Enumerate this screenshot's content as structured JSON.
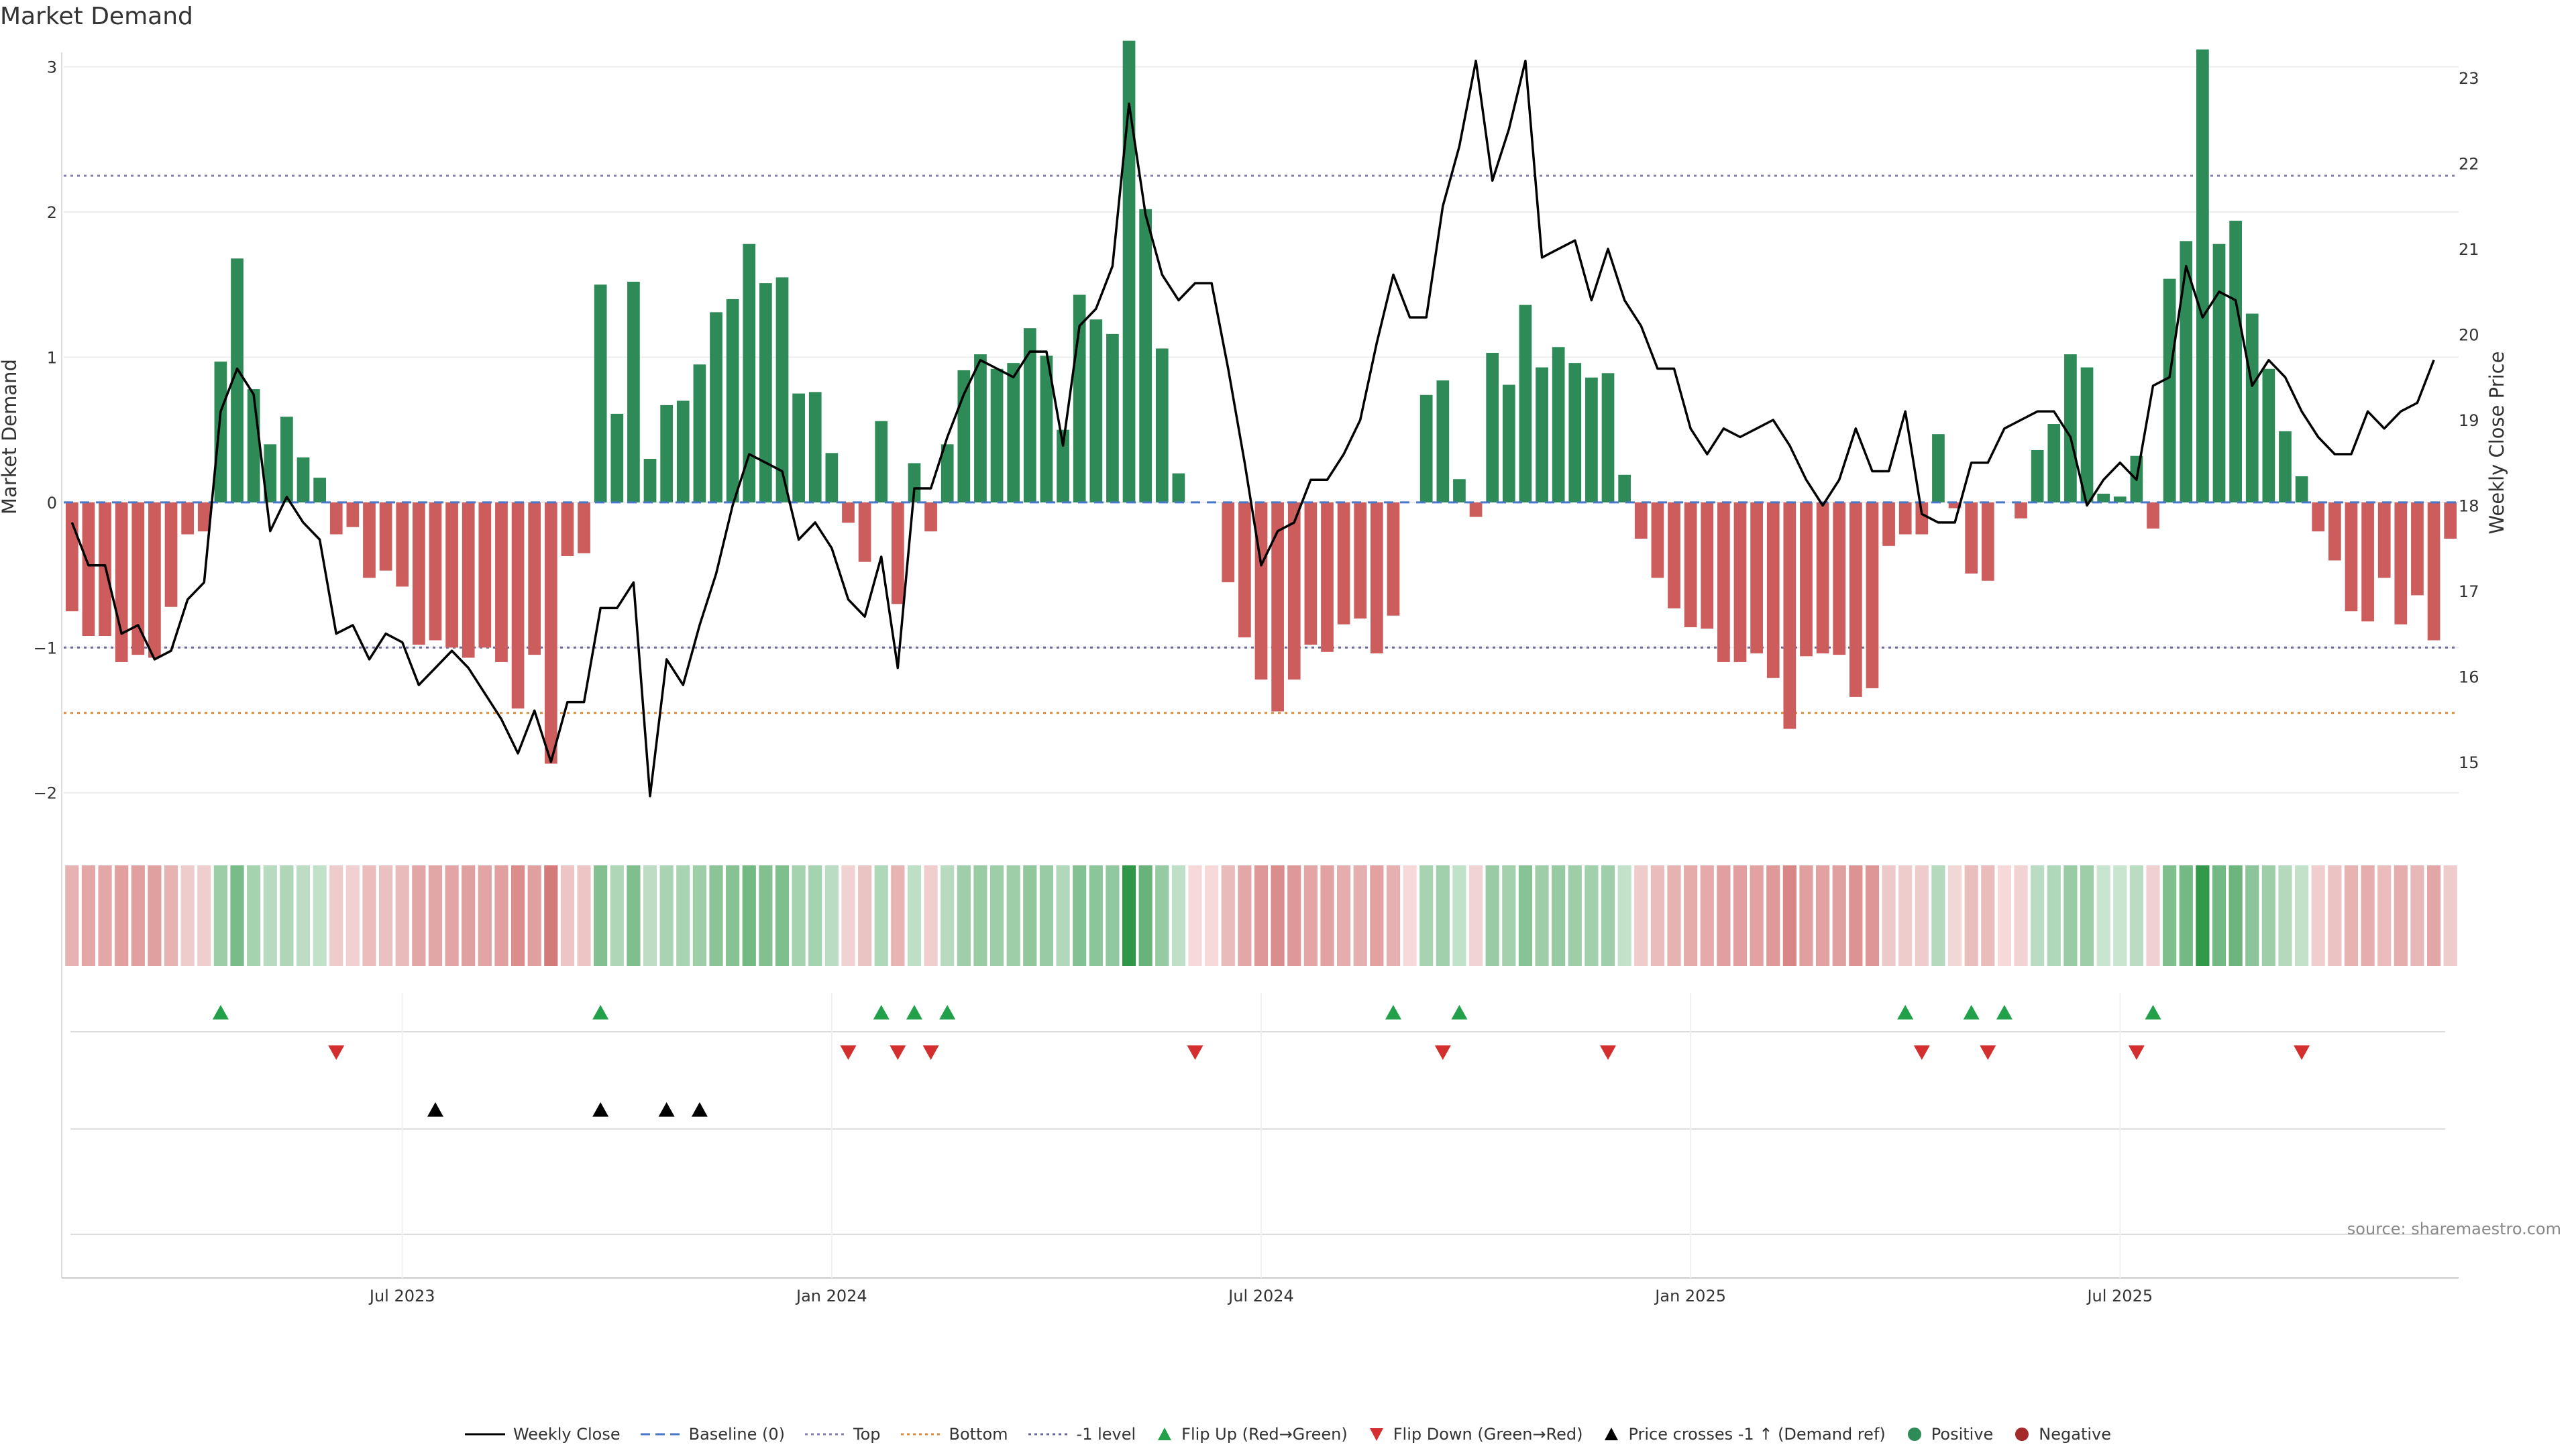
{
  "title": "Market Demand",
  "source": "source: sharemaestro.com",
  "colors": {
    "positive": "#2e8b57",
    "negative": "#cd5c5c",
    "price_line": "#000000",
    "top": "#8a7fb0",
    "bottom": "#e08a3c",
    "minus_one": "#6a6a9a",
    "flip_up": "#22a04a",
    "flip_down": "#d32f2f",
    "cross_marker": "#000000"
  },
  "legend": [
    {
      "label": "Weekly Close",
      "kind": "line",
      "color": "#000000"
    },
    {
      "label": "Baseline (0)",
      "kind": "dash",
      "color": "#4a78c8"
    },
    {
      "label": "Top",
      "kind": "dot",
      "color": "#8a7fb0"
    },
    {
      "label": "Bottom",
      "kind": "dot",
      "color": "#e08a3c"
    },
    {
      "label": "-1 level",
      "kind": "dot",
      "color": "#6a6a9a"
    },
    {
      "label": "Flip Up (Red→Green)",
      "kind": "tri-up",
      "color": "#22a04a"
    },
    {
      "label": "Flip Down (Green→Red)",
      "kind": "tri-down",
      "color": "#d32f2f"
    },
    {
      "label": "Price crosses -1 ↑ (Demand ref)",
      "kind": "tri-up",
      "color": "#000000"
    },
    {
      "label": "Positive",
      "kind": "circle",
      "color": "#2e8b57"
    },
    {
      "label": "Negative",
      "kind": "circle",
      "color": "#a52a2a"
    }
  ],
  "chart_data": {
    "type": "bar+line",
    "title": "Market Demand",
    "ylabel": "Market Demand",
    "y2label": "Weekly Close Price",
    "ylim": [
      -2.2,
      3.1
    ],
    "y2lim": [
      14.3,
      23.3
    ],
    "yticks": [
      -2,
      -1,
      0,
      1,
      2,
      3
    ],
    "yticklabels": [
      "−2",
      "−1",
      "0",
      "1",
      "2",
      "3"
    ],
    "y2ticks": [
      15,
      16,
      17,
      18,
      19,
      20,
      21,
      22,
      23
    ],
    "xticklabels": [
      {
        "label": "Jul 2023",
        "week": 20
      },
      {
        "label": "Jan 2024",
        "week": 46
      },
      {
        "label": "Jul 2024",
        "week": 72
      },
      {
        "label": "Jan 2025",
        "week": 98
      },
      {
        "label": "Jul 2025",
        "week": 124
      }
    ],
    "levels": {
      "top": 2.25,
      "bottom": -1.45,
      "minus_one": -1.0,
      "baseline": 0
    },
    "demand": [
      -0.75,
      -0.92,
      -0.92,
      -1.1,
      -1.05,
      -1.07,
      -0.72,
      -0.22,
      -0.2,
      0.97,
      1.68,
      0.78,
      0.4,
      0.59,
      0.31,
      0.17,
      -0.22,
      -0.17,
      -0.52,
      -0.47,
      -0.58,
      -0.98,
      -0.95,
      -1.0,
      -1.07,
      -1.0,
      -1.1,
      -1.42,
      -1.05,
      -1.8,
      -0.37,
      -0.35,
      1.5,
      0.61,
      1.52,
      0.3,
      0.67,
      0.7,
      0.95,
      1.31,
      1.4,
      1.78,
      1.51,
      1.55,
      0.75,
      0.76,
      0.34,
      -0.14,
      -0.41,
      0.56,
      -0.7,
      0.27,
      -0.2,
      0.4,
      0.91,
      1.02,
      0.92,
      0.96,
      1.2,
      1.01,
      0.5,
      1.43,
      1.26,
      1.16,
      3.18,
      2.02,
      1.06,
      0.2,
      0.0,
      0.0,
      -0.55,
      -0.93,
      -1.22,
      -1.44,
      -1.22,
      -0.98,
      -1.03,
      -0.84,
      -0.8,
      -1.04,
      -0.78,
      0.0,
      0.74,
      0.84,
      0.16,
      -0.1,
      1.03,
      0.81,
      1.36,
      0.93,
      1.07,
      0.96,
      0.86,
      0.89,
      0.19,
      -0.25,
      -0.52,
      -0.73,
      -0.86,
      -0.87,
      -1.1,
      -1.1,
      -1.04,
      -1.21,
      -1.56,
      -1.06,
      -1.04,
      -1.05,
      -1.34,
      -1.28,
      -0.3,
      -0.22,
      -0.22,
      0.47,
      -0.04,
      -0.49,
      -0.54,
      0.0,
      -0.11,
      0.36,
      0.54,
      1.02,
      0.93,
      0.06,
      0.04,
      0.32,
      -0.18,
      1.54,
      1.8,
      3.12,
      1.78,
      1.94,
      1.3,
      0.92,
      0.49,
      0.18,
      -0.2,
      -0.4,
      -0.75,
      -0.82,
      -0.52,
      -0.84,
      -0.64,
      -0.95,
      -0.25
    ],
    "close": [
      17.8,
      17.3,
      17.3,
      16.5,
      16.6,
      16.2,
      16.3,
      16.9,
      17.1,
      19.1,
      19.6,
      19.3,
      17.7,
      18.1,
      17.8,
      17.6,
      16.5,
      16.6,
      16.2,
      16.5,
      16.4,
      15.9,
      16.1,
      16.3,
      16.1,
      15.8,
      15.5,
      15.1,
      15.6,
      15.0,
      15.7,
      15.7,
      16.8,
      16.8,
      17.1,
      14.6,
      16.2,
      15.9,
      16.6,
      17.2,
      18.0,
      18.6,
      18.5,
      18.4,
      17.6,
      17.8,
      17.5,
      16.9,
      16.7,
      17.4,
      16.1,
      18.2,
      18.2,
      18.8,
      19.3,
      19.7,
      19.6,
      19.5,
      19.8,
      19.8,
      18.7,
      20.1,
      20.3,
      20.8,
      22.7,
      21.4,
      20.7,
      20.4,
      20.6,
      20.6,
      19.6,
      18.5,
      17.3,
      17.7,
      17.8,
      18.3,
      18.3,
      18.6,
      19.0,
      19.9,
      20.7,
      20.2,
      20.2,
      21.5,
      22.2,
      23.2,
      21.8,
      22.4,
      23.2,
      20.9,
      21.0,
      21.1,
      20.4,
      21.0,
      20.4,
      20.1,
      19.6,
      19.6,
      18.9,
      18.6,
      18.9,
      18.8,
      18.9,
      19.0,
      18.7,
      18.3,
      18.0,
      18.3,
      18.9,
      18.4,
      18.4,
      19.1,
      17.9,
      17.8,
      17.8,
      18.5,
      18.5,
      18.9,
      19.0,
      19.1,
      19.1,
      18.8,
      18.0,
      18.3,
      18.5,
      18.3,
      19.4,
      19.5,
      20.8,
      20.2,
      20.5,
      20.4,
      19.4,
      19.7,
      19.5,
      19.1,
      18.8,
      18.6,
      18.6,
      19.1,
      18.9,
      19.1,
      19.2,
      19.7
    ],
    "flip_up_weeks": [
      9,
      32,
      49,
      51,
      53,
      80,
      84,
      111,
      115,
      117,
      126
    ],
    "flip_down_weeks": [
      16,
      47,
      50,
      52,
      68,
      83,
      93,
      112,
      116,
      125,
      135
    ],
    "cross_weeks": [
      22,
      32,
      36,
      38
    ]
  }
}
